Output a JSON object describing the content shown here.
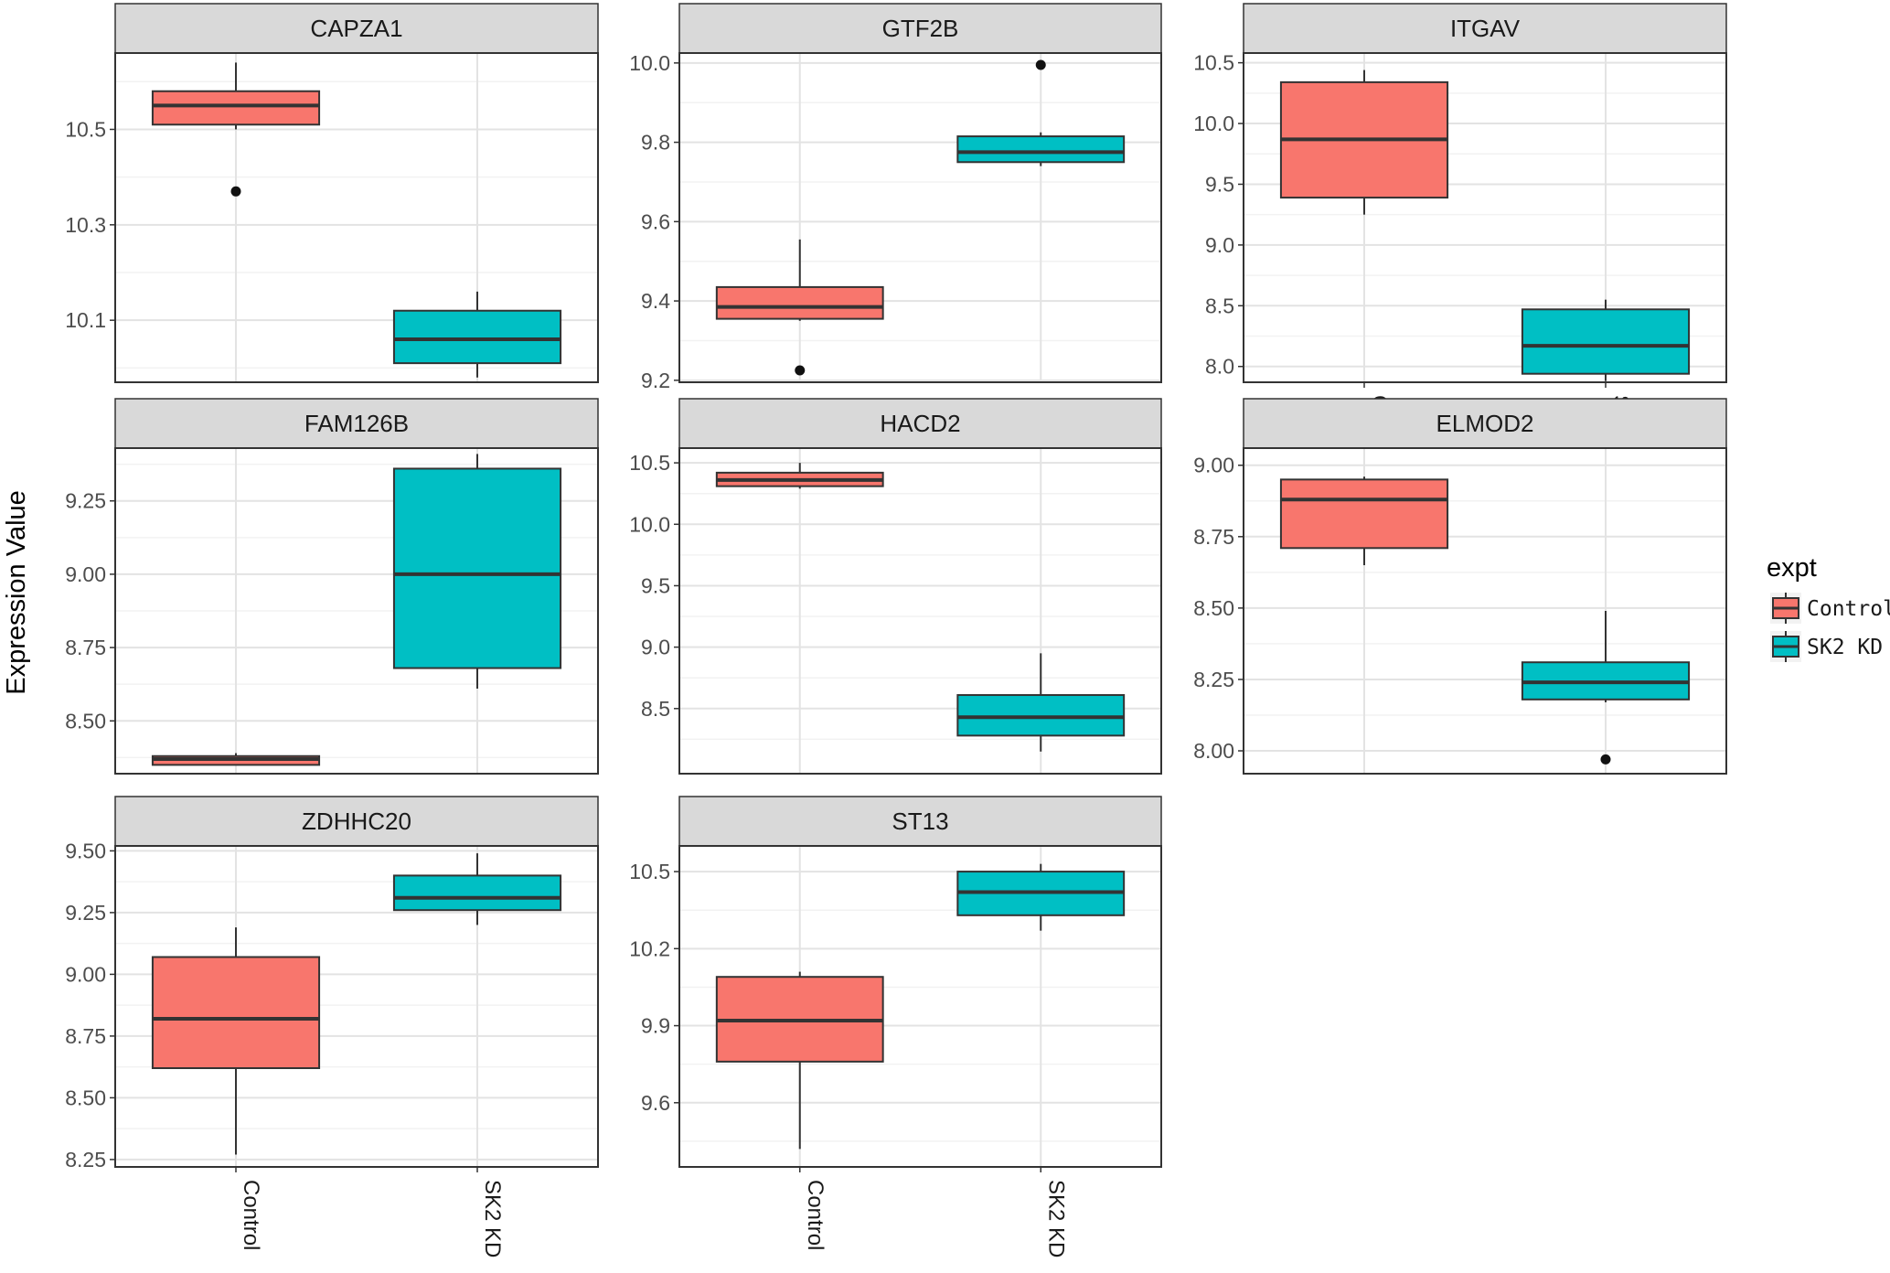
{
  "chart_data": {
    "type": "boxplot",
    "ylabel": "Expression Value",
    "categories": [
      "Control",
      "SK2 KD"
    ],
    "colors": {
      "Control": "#F8766D",
      "SK2 KD": "#00BFC4"
    },
    "legend": {
      "title": "expt",
      "items": [
        "Control",
        "SK2 KD"
      ],
      "placement": "right"
    },
    "grid": true,
    "panels": [
      {
        "name": "CAPZA1",
        "ylim": [
          9.97,
          10.66
        ],
        "yticks": [
          10.1,
          10.3,
          10.5
        ],
        "ytick_labels": [
          "10.1",
          "10.3",
          "10.5"
        ],
        "boxes": [
          {
            "group": "Control",
            "min": 10.5,
            "q1": 10.51,
            "median": 10.55,
            "q3": 10.58,
            "max": 10.64,
            "outliers": [
              10.37
            ]
          },
          {
            "group": "SK2 KD",
            "min": 9.98,
            "q1": 10.01,
            "median": 10.06,
            "q3": 10.12,
            "max": 10.16,
            "outliers": []
          }
        ],
        "show_x_labels": false
      },
      {
        "name": "GTF2B",
        "ylim": [
          9.195,
          10.025
        ],
        "yticks": [
          9.2,
          9.4,
          9.6,
          9.8,
          10.0
        ],
        "ytick_labels": [
          "9.2",
          "9.4",
          "9.6",
          "9.8",
          "10.0"
        ],
        "boxes": [
          {
            "group": "Control",
            "min": 9.35,
            "q1": 9.355,
            "median": 9.385,
            "q3": 9.435,
            "max": 9.555,
            "outliers": [
              9.225
            ]
          },
          {
            "group": "SK2 KD",
            "min": 9.74,
            "q1": 9.75,
            "median": 9.775,
            "q3": 9.815,
            "max": 9.825,
            "outliers": [
              9.995
            ]
          }
        ],
        "show_x_labels": false
      },
      {
        "name": "ITGAV",
        "ylim": [
          7.87,
          10.58
        ],
        "yticks": [
          8.0,
          8.5,
          9.0,
          9.5,
          10.0,
          10.5
        ],
        "ytick_labels": [
          "8.0",
          "8.5",
          "9.0",
          "9.5",
          "10.0",
          "10.5"
        ],
        "boxes": [
          {
            "group": "Control",
            "min": 9.25,
            "q1": 9.39,
            "median": 9.87,
            "q3": 10.34,
            "max": 10.44,
            "outliers": []
          },
          {
            "group": "SK2 KD",
            "min": 7.88,
            "q1": 7.94,
            "median": 8.17,
            "q3": 8.47,
            "max": 8.55,
            "outliers": []
          }
        ],
        "show_x_labels": true
      },
      {
        "name": "FAM126B",
        "ylim": [
          8.32,
          9.43
        ],
        "yticks": [
          8.5,
          8.75,
          9.0,
          9.25
        ],
        "ytick_labels": [
          "8.50",
          "8.75",
          "9.00",
          "9.25"
        ],
        "boxes": [
          {
            "group": "Control",
            "min": 8.35,
            "q1": 8.35,
            "median": 8.37,
            "q3": 8.38,
            "max": 8.39,
            "outliers": []
          },
          {
            "group": "SK2 KD",
            "min": 8.61,
            "q1": 8.68,
            "median": 9.0,
            "q3": 9.36,
            "max": 9.41,
            "outliers": []
          }
        ],
        "show_x_labels": false
      },
      {
        "name": "HACD2",
        "ylim": [
          7.97,
          10.62
        ],
        "yticks": [
          8.5,
          9.0,
          9.5,
          10.0,
          10.5
        ],
        "ytick_labels": [
          "8.5",
          "9.0",
          "9.5",
          "10.0",
          "10.5"
        ],
        "boxes": [
          {
            "group": "Control",
            "min": 10.29,
            "q1": 10.31,
            "median": 10.36,
            "q3": 10.42,
            "max": 10.5,
            "outliers": []
          },
          {
            "group": "SK2 KD",
            "min": 8.15,
            "q1": 8.28,
            "median": 8.43,
            "q3": 8.61,
            "max": 8.95,
            "outliers": []
          }
        ],
        "show_x_labels": false
      },
      {
        "name": "ELMOD2",
        "ylim": [
          7.92,
          9.06
        ],
        "yticks": [
          8.0,
          8.25,
          8.5,
          8.75,
          9.0
        ],
        "ytick_labels": [
          "8.00",
          "8.25",
          "8.50",
          "8.75",
          "9.00"
        ],
        "boxes": [
          {
            "group": "Control",
            "min": 8.65,
            "q1": 8.71,
            "median": 8.88,
            "q3": 8.95,
            "max": 8.96,
            "outliers": []
          },
          {
            "group": "SK2 KD",
            "min": 8.17,
            "q1": 8.18,
            "median": 8.24,
            "q3": 8.31,
            "max": 8.49,
            "outliers": [
              7.97
            ]
          }
        ],
        "show_x_labels": false
      },
      {
        "name": "ZDHHC20",
        "ylim": [
          8.22,
          9.52
        ],
        "yticks": [
          8.25,
          8.5,
          8.75,
          9.0,
          9.25,
          9.5
        ],
        "ytick_labels": [
          "8.25",
          "8.50",
          "8.75",
          "9.00",
          "9.25",
          "9.50"
        ],
        "boxes": [
          {
            "group": "Control",
            "min": 8.27,
            "q1": 8.62,
            "median": 8.82,
            "q3": 9.07,
            "max": 9.19,
            "outliers": []
          },
          {
            "group": "SK2 KD",
            "min": 9.2,
            "q1": 9.26,
            "median": 9.31,
            "q3": 9.4,
            "max": 9.49,
            "outliers": []
          }
        ],
        "show_x_labels": true
      },
      {
        "name": "ST13",
        "ylim": [
          9.35,
          10.6
        ],
        "yticks": [
          9.6,
          9.9,
          10.2,
          10.5
        ],
        "ytick_labels": [
          "9.6",
          "9.9",
          "10.2",
          "10.5"
        ],
        "boxes": [
          {
            "group": "Control",
            "min": 9.42,
            "q1": 9.76,
            "median": 9.92,
            "q3": 10.09,
            "max": 10.11,
            "outliers": []
          },
          {
            "group": "SK2 KD",
            "min": 10.27,
            "q1": 10.33,
            "median": 10.42,
            "q3": 10.5,
            "max": 10.53,
            "outliers": []
          }
        ],
        "show_x_labels": true
      }
    ]
  }
}
